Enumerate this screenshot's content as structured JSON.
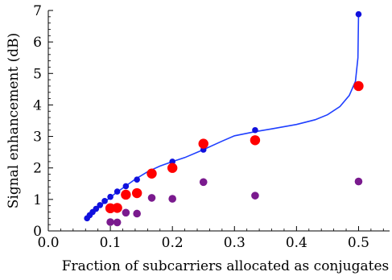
{
  "chart_data": {
    "type": "scatter",
    "title": "",
    "xlabel": "Fraction of subcarriers allocated as conjugates",
    "ylabel": "Signal enhancement (dB)",
    "xlim": [
      0.0,
      0.55
    ],
    "ylim": [
      0,
      7
    ],
    "x_ticks": [
      0.0,
      0.1,
      0.2,
      0.3,
      0.4,
      0.5
    ],
    "x_tick_labels": [
      "0.0",
      "0.1",
      "0.2",
      "0.3",
      "0.4",
      "0.5"
    ],
    "y_ticks": [
      0,
      1,
      2,
      3,
      4,
      5,
      6,
      7
    ],
    "y_tick_labels": [
      "0",
      "1",
      "2",
      "3",
      "4",
      "5",
      "6",
      "7"
    ],
    "grid": false,
    "legend": "none",
    "colors": {
      "line": "#1f3fff",
      "blue": "#1010dd",
      "red": "#ff0000",
      "purple": "#7a1a8e"
    },
    "series": [
      {
        "kind": "line",
        "color_key": "line",
        "x": [
          0.0625,
          0.07,
          0.08,
          0.09,
          0.1,
          0.11,
          0.125,
          0.14,
          0.16,
          0.18,
          0.2,
          0.22,
          0.25,
          0.28,
          0.3,
          0.333,
          0.36,
          0.4,
          0.43,
          0.45,
          0.47,
          0.485,
          0.495,
          0.499,
          0.5
        ],
        "y": [
          0.42,
          0.55,
          0.72,
          0.9,
          1.07,
          1.22,
          1.43,
          1.64,
          1.88,
          2.06,
          2.2,
          2.33,
          2.58,
          2.85,
          3.02,
          3.15,
          3.24,
          3.38,
          3.53,
          3.69,
          3.95,
          4.3,
          4.75,
          5.5,
          6.9
        ]
      },
      {
        "kind": "points",
        "color_key": "blue",
        "radius": 3.8,
        "x": [
          0.0625,
          0.0667,
          0.0714,
          0.0769,
          0.0833,
          0.0909,
          0.1,
          0.1111,
          0.125,
          0.1429,
          0.1667,
          0.2,
          0.25,
          0.3333,
          0.5
        ],
        "y": [
          0.4,
          0.5,
          0.6,
          0.7,
          0.82,
          0.95,
          1.08,
          1.25,
          1.42,
          1.63,
          1.87,
          2.2,
          2.58,
          3.2,
          6.88
        ]
      },
      {
        "kind": "points",
        "color_key": "red",
        "radius": 6.2,
        "x": [
          0.1,
          0.1111,
          0.125,
          0.1429,
          0.1667,
          0.2,
          0.25,
          0.3333,
          0.5
        ],
        "y": [
          0.72,
          0.73,
          1.15,
          1.2,
          1.82,
          2.0,
          2.77,
          2.88,
          4.6
        ]
      },
      {
        "kind": "points",
        "color_key": "purple",
        "radius": 4.8,
        "x": [
          0.1,
          0.1111,
          0.125,
          0.1429,
          0.1667,
          0.2,
          0.25,
          0.3333,
          0.5
        ],
        "y": [
          0.28,
          0.27,
          0.58,
          0.55,
          1.05,
          1.02,
          1.55,
          1.12,
          1.57
        ]
      }
    ]
  }
}
